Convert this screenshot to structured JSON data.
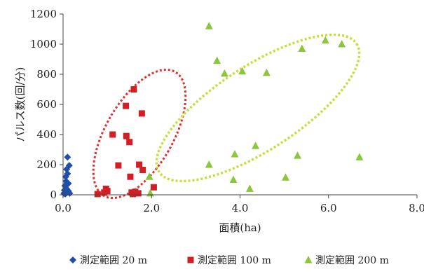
{
  "chart_data": {
    "type": "scatter",
    "title": "",
    "xlabel": "面積(ha)",
    "ylabel": "パルス数(回/分)",
    "xlim": [
      0,
      8
    ],
    "ylim": [
      0,
      1200
    ],
    "x_ticks": [
      "0.0",
      "2.0",
      "4.0",
      "6.0",
      "8.0"
    ],
    "y_ticks": [
      "0",
      "200",
      "400",
      "600",
      "800",
      "1000",
      "1200"
    ],
    "grid": false,
    "legend_position": "bottom",
    "series": [
      {
        "name": "測定範囲 20 m",
        "marker": "diamond",
        "color": "#1f4fa8",
        "points": [
          [
            0.02,
            10
          ],
          [
            0.03,
            30
          ],
          [
            0.04,
            60
          ],
          [
            0.05,
            5
          ],
          [
            0.06,
            120
          ],
          [
            0.06,
            20
          ],
          [
            0.07,
            90
          ],
          [
            0.08,
            40
          ],
          [
            0.08,
            170
          ],
          [
            0.09,
            15
          ],
          [
            0.1,
            140
          ],
          [
            0.1,
            250
          ],
          [
            0.12,
            75
          ],
          [
            0.12,
            25
          ],
          [
            0.14,
            195
          ],
          [
            0.15,
            10
          ]
        ]
      },
      {
        "name": "測定範囲 100 m",
        "marker": "square",
        "color": "#d21f26",
        "points": [
          [
            0.78,
            5
          ],
          [
            0.93,
            15
          ],
          [
            0.97,
            40
          ],
          [
            1.0,
            25
          ],
          [
            1.12,
            400
          ],
          [
            1.25,
            195
          ],
          [
            1.42,
            590
          ],
          [
            1.43,
            390
          ],
          [
            1.5,
            350
          ],
          [
            1.52,
            120
          ],
          [
            1.55,
            15
          ],
          [
            1.58,
            5
          ],
          [
            1.6,
            700
          ],
          [
            1.63,
            20
          ],
          [
            1.7,
            10
          ],
          [
            1.72,
            200
          ],
          [
            1.78,
            540
          ],
          [
            1.8,
            165
          ],
          [
            2.05,
            50
          ]
        ]
      },
      {
        "name": "測定範囲 200 m",
        "marker": "triangle",
        "color": "#8cc63f",
        "points": [
          [
            1.95,
            120
          ],
          [
            1.97,
            10
          ],
          [
            3.3,
            200
          ],
          [
            3.3,
            1120
          ],
          [
            3.48,
            890
          ],
          [
            3.65,
            805
          ],
          [
            3.85,
            100
          ],
          [
            3.88,
            270
          ],
          [
            4.05,
            820
          ],
          [
            4.22,
            40
          ],
          [
            4.35,
            325
          ],
          [
            4.6,
            810
          ],
          [
            5.03,
            115
          ],
          [
            5.3,
            260
          ],
          [
            5.4,
            970
          ],
          [
            5.93,
            1025
          ],
          [
            6.3,
            1000
          ],
          [
            6.7,
            250
          ]
        ]
      }
    ]
  }
}
